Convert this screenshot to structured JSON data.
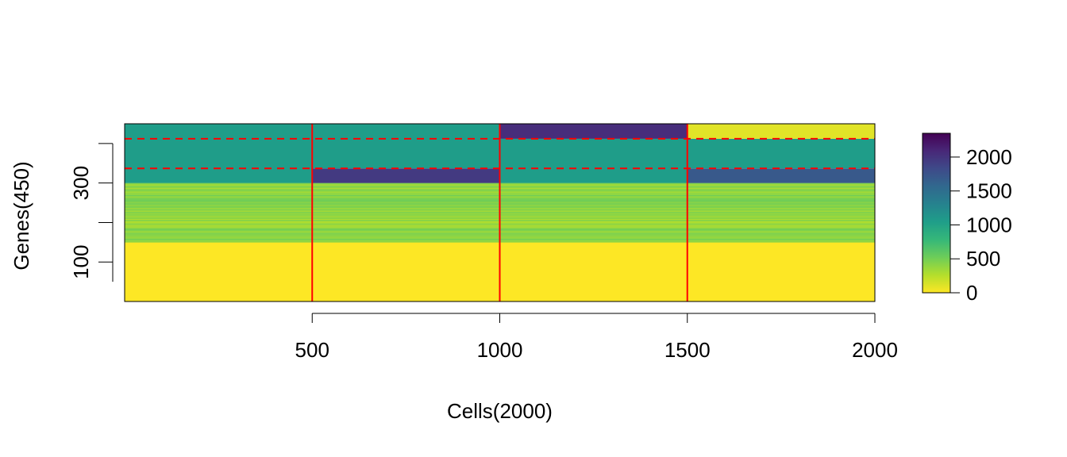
{
  "chart_data": {
    "type": "heatmap",
    "title": "",
    "xlabel": "Cells(2000)",
    "ylabel": "Genes(450)",
    "xlim": [
      0,
      2000
    ],
    "ylim": [
      0,
      450
    ],
    "x_ticks": [
      500,
      1000,
      1500,
      2000
    ],
    "y_ticks": [
      100,
      300
    ],
    "cell_groups": [
      [
        0,
        500
      ],
      [
        500,
        1000
      ],
      [
        1000,
        1500
      ],
      [
        1500,
        2000
      ]
    ],
    "cell_group_boundaries": [
      500,
      1000,
      1500
    ],
    "gene_group_boundaries": [
      337,
      412
    ],
    "blocks": [
      {
        "cells": [
          0,
          2000
        ],
        "genes": [
          0,
          150
        ],
        "value": 0
      },
      {
        "cells": [
          0,
          2000
        ],
        "genes": [
          150,
          300
        ],
        "value": 400,
        "striped": true
      },
      {
        "cells": [
          0,
          500
        ],
        "genes": [
          300,
          450
        ],
        "value": 1050
      },
      {
        "cells": [
          500,
          1000
        ],
        "genes": [
          300,
          337
        ],
        "value": 1950
      },
      {
        "cells": [
          500,
          1000
        ],
        "genes": [
          337,
          450
        ],
        "value": 1050
      },
      {
        "cells": [
          1000,
          1500
        ],
        "genes": [
          300,
          412
        ],
        "value": 1050
      },
      {
        "cells": [
          1000,
          1500
        ],
        "genes": [
          412,
          450
        ],
        "value": 2050
      },
      {
        "cells": [
          1500,
          2000
        ],
        "genes": [
          300,
          337
        ],
        "value": 1700
      },
      {
        "cells": [
          1500,
          2000
        ],
        "genes": [
          337,
          412
        ],
        "value": 1050
      },
      {
        "cells": [
          1500,
          2000
        ],
        "genes": [
          412,
          450
        ],
        "value": 100
      }
    ],
    "colorbar": {
      "range": [
        0,
        2350
      ],
      "ticks": [
        0,
        500,
        1000,
        1500,
        2000
      ],
      "palette": [
        "#FDE725",
        "#B4DE2C",
        "#6DCD59",
        "#35B779",
        "#1F9E89",
        "#26828E",
        "#31688E",
        "#3E4A89",
        "#482878",
        "#440154"
      ]
    },
    "line_color": "#FF0000",
    "grid": false,
    "legend": "right"
  }
}
